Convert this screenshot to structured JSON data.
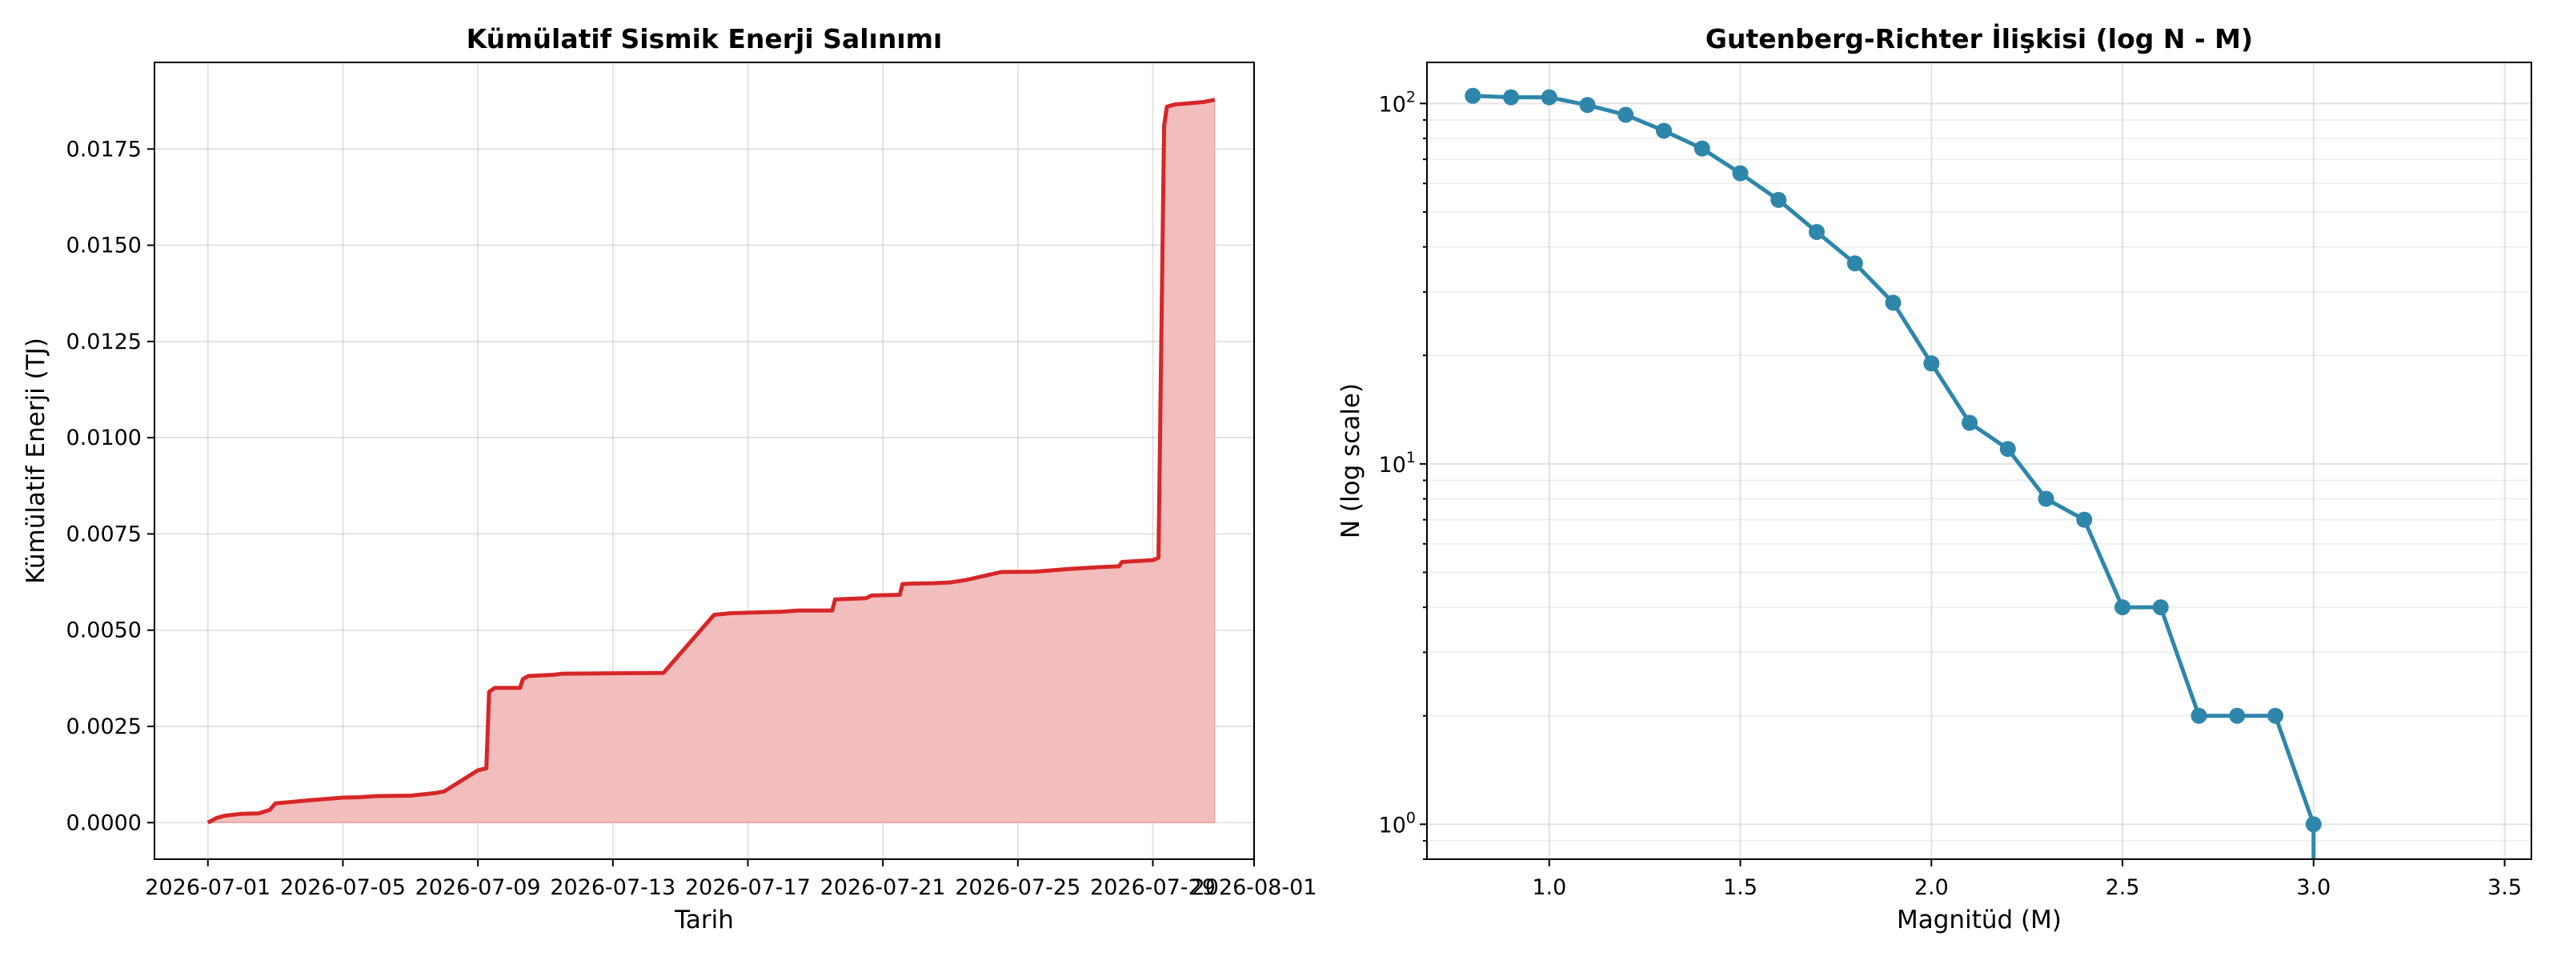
{
  "chart_data": [
    {
      "type": "area",
      "title": "Kümülatif Sismik Enerji Salınımı",
      "xlabel": "Tarih",
      "ylabel": "Kümülatif Enerji (TJ)",
      "x_axis_type": "date",
      "xlim": [
        "2026-06-29T10:00",
        "2026-08-01T00:00"
      ],
      "ylim": [
        -0.00095,
        0.01975
      ],
      "x_ticks": [
        "2026-07-01",
        "2026-07-05",
        "2026-07-09",
        "2026-07-13",
        "2026-07-17",
        "2026-07-21",
        "2026-07-25",
        "2026-07-29",
        "2026-08-01"
      ],
      "y_ticks": [
        0.0,
        0.0025,
        0.005,
        0.0075,
        0.01,
        0.0125,
        0.015,
        0.0175
      ],
      "y_tick_labels": [
        "0.0000",
        "0.0025",
        "0.0050",
        "0.0075",
        "0.0100",
        "0.0125",
        "0.0150",
        "0.0175"
      ],
      "grid": true,
      "line_color": "#d62728",
      "fill_color": "#f2bdbd",
      "series": [
        {
          "x": [
            "2026-07-01T00:00",
            "2026-07-01T06:00",
            "2026-07-01T12:00",
            "2026-07-02T00:00",
            "2026-07-02T12:00",
            "2026-07-02T20:00",
            "2026-07-03T00:00",
            "2026-07-03T12:00",
            "2026-07-04T00:00",
            "2026-07-05T00:00",
            "2026-07-05T12:00",
            "2026-07-06T00:00",
            "2026-07-07T00:00",
            "2026-07-07T18:00",
            "2026-07-08T00:00",
            "2026-07-09T00:00",
            "2026-07-09T06:00",
            "2026-07-09T08:00",
            "2026-07-09T12:00",
            "2026-07-10T06:00",
            "2026-07-10T08:00",
            "2026-07-10T12:00",
            "2026-07-11T06:00",
            "2026-07-11T12:00",
            "2026-07-14T12:00",
            "2026-07-16T00:00",
            "2026-07-16T12:00",
            "2026-07-18T00:00",
            "2026-07-18T12:00",
            "2026-07-19T12:00",
            "2026-07-19T14:00",
            "2026-07-20T12:00",
            "2026-07-20T16:00",
            "2026-07-21T12:00",
            "2026-07-21T14:00",
            "2026-07-21T20:00",
            "2026-07-22T12:00",
            "2026-07-23T00:00",
            "2026-07-23T12:00",
            "2026-07-24T12:00",
            "2026-07-25T12:00",
            "2026-07-26T12:00",
            "2026-07-27T12:00",
            "2026-07-28T00:00",
            "2026-07-28T02:00",
            "2026-07-29T00:00",
            "2026-07-29T04:00",
            "2026-07-29T08:00",
            "2026-07-29T10:00",
            "2026-07-29T16:00",
            "2026-07-30T12:00",
            "2026-07-30T20:00"
          ],
          "values": [
            0.0,
            0.00012,
            0.00018,
            0.00023,
            0.00024,
            0.00033,
            0.0005,
            0.00054,
            0.00058,
            0.00065,
            0.00066,
            0.00069,
            0.0007,
            0.00077,
            0.00081,
            0.00136,
            0.00141,
            0.0034,
            0.0035,
            0.0035,
            0.00373,
            0.00381,
            0.00384,
            0.00387,
            0.00389,
            0.0054,
            0.00544,
            0.00548,
            0.00551,
            0.00551,
            0.0058,
            0.00583,
            0.0059,
            0.00592,
            0.0062,
            0.00621,
            0.00622,
            0.00624,
            0.00631,
            0.00651,
            0.00652,
            0.00659,
            0.00664,
            0.00666,
            0.00677,
            0.00682,
            0.00688,
            0.0181,
            0.0186,
            0.01866,
            0.01872,
            0.01878
          ]
        }
      ]
    },
    {
      "type": "line",
      "title": "Gutenberg-Richter İlişkisi (log N - M)",
      "xlabel": "Magnitüd (M)",
      "ylabel": "N (log scale)",
      "y_scale": "log",
      "xlim": [
        0.68,
        3.57
      ],
      "ylim": [
        0.8,
        130
      ],
      "x_ticks": [
        1.0,
        1.5,
        2.0,
        2.5,
        3.0,
        3.5
      ],
      "x_tick_labels": [
        "1.0",
        "1.5",
        "2.0",
        "2.5",
        "3.0",
        "3.5"
      ],
      "y_ticks": [
        1,
        10,
        100
      ],
      "grid": true,
      "line_color": "#2e86ab",
      "series": [
        {
          "x": [
            0.8,
            0.9,
            1.0,
            1.1,
            1.2,
            1.3,
            1.4,
            1.5,
            1.6,
            1.7,
            1.8,
            1.9,
            2.0,
            2.1,
            2.2,
            2.3,
            2.4,
            2.5,
            2.6,
            2.7,
            2.8,
            2.9,
            3.0
          ],
          "values": [
            105,
            104,
            104,
            99,
            93,
            84,
            75,
            64,
            54,
            44,
            36,
            28,
            19,
            13,
            11,
            8,
            7,
            4,
            4,
            2,
            2,
            2,
            1
          ]
        }
      ]
    }
  ]
}
